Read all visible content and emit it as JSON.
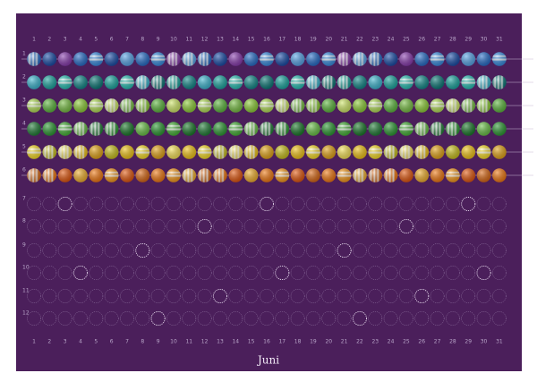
{
  "title": "Juni",
  "days": [
    "1",
    "2",
    "3",
    "4",
    "5",
    "6",
    "7",
    "8",
    "9",
    "10",
    "11",
    "12",
    "13",
    "14",
    "15",
    "16",
    "17",
    "18",
    "19",
    "20",
    "21",
    "22",
    "23",
    "24",
    "25",
    "26",
    "27",
    "28",
    "29",
    "30",
    "31"
  ],
  "rows": [
    "1",
    "2",
    "3",
    "4",
    "5",
    "6",
    "7",
    "8",
    "9",
    "10",
    "11",
    "12"
  ]
}
